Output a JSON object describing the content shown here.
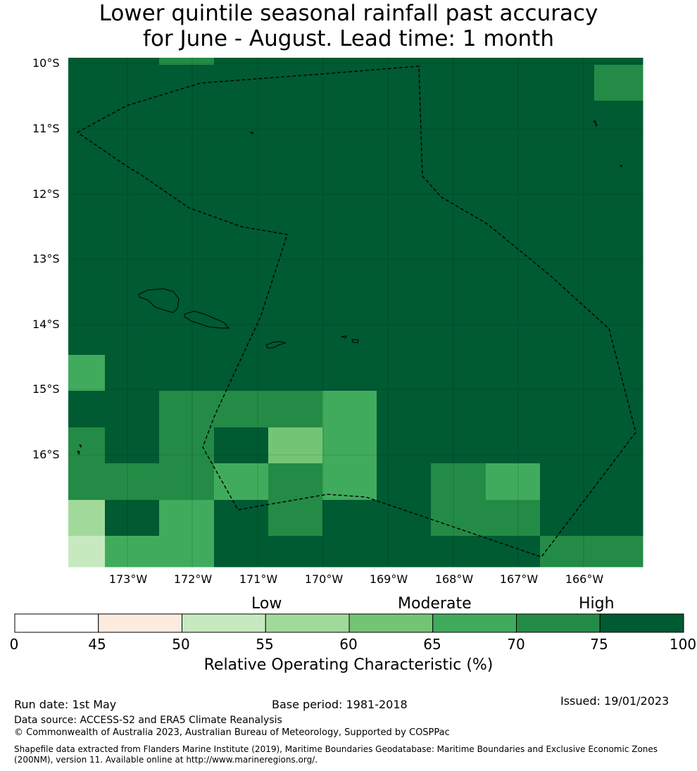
{
  "title": {
    "line1": "Lower quintile seasonal rainfall past accuracy",
    "line2": "for June - August. Lead time: 1 month"
  },
  "map": {
    "lat_labels": [
      "10°S",
      "11°S",
      "12°S",
      "13°S",
      "14°S",
      "15°S",
      "16°S"
    ],
    "lon_labels": [
      "173°W",
      "172°W",
      "171°W",
      "170°W",
      "169°W",
      "168°W",
      "167°W",
      "166°W"
    ],
    "grid_values": [
      [
        100,
        100,
        70,
        100,
        100,
        100,
        100,
        100,
        100,
        100,
        100,
        100,
        100,
        100,
        100,
        100
      ],
      [
        100,
        100,
        100,
        100,
        100,
        100,
        100,
        100,
        100,
        100,
        75,
        100,
        100,
        75,
        70,
        100
      ],
      [
        100,
        100,
        100,
        100,
        100,
        100,
        100,
        100,
        100,
        100,
        75,
        100,
        100,
        75,
        75,
        75
      ],
      [
        100,
        100,
        100,
        100,
        75,
        75,
        75,
        100,
        100,
        100,
        100,
        100,
        100,
        75,
        100,
        100
      ],
      [
        100,
        100,
        100,
        100,
        75,
        100,
        100,
        75,
        100,
        100,
        100,
        100,
        100,
        100,
        100,
        100
      ],
      [
        100,
        100,
        100,
        100,
        100,
        100,
        100,
        100,
        100,
        100,
        100,
        75,
        100,
        100,
        100,
        100
      ],
      [
        100,
        100,
        100,
        100,
        100,
        100,
        100,
        100,
        100,
        100,
        100,
        100,
        100,
        100,
        100,
        100
      ],
      [
        100,
        100,
        100,
        100,
        100,
        100,
        100,
        100,
        100,
        100,
        100,
        100,
        100,
        100,
        100,
        100
      ],
      [
        75,
        100,
        100,
        100,
        100,
        100,
        100,
        100,
        100,
        100,
        100,
        100,
        100,
        100,
        75,
        65
      ],
      [
        65,
        100,
        100,
        100,
        75,
        100,
        100,
        75,
        100,
        100,
        100,
        100,
        100,
        100,
        100,
        65
      ],
      [
        100,
        75,
        70,
        70,
        70,
        70,
        70,
        65,
        100,
        100,
        100,
        100,
        100,
        100,
        100,
        100
      ],
      [
        70,
        75,
        70,
        70,
        75,
        60,
        60,
        65,
        100,
        100,
        100,
        100,
        70,
        100,
        100,
        75
      ],
      [
        70,
        70,
        70,
        100,
        65,
        70,
        70,
        65,
        100,
        70,
        70,
        65,
        70,
        100,
        100,
        100
      ],
      [
        55,
        75,
        65,
        65,
        75,
        70,
        70,
        75,
        75,
        75,
        70,
        70,
        70,
        75,
        100,
        100
      ],
      [
        50,
        65,
        65,
        70,
        100,
        100,
        100,
        100,
        100,
        100,
        75,
        75,
        65,
        70,
        70,
        70
      ]
    ]
  },
  "legend": {
    "category_labels": [
      "Low",
      "Moderate",
      "High"
    ],
    "tick_labels": [
      "0",
      "45",
      "50",
      "55",
      "60",
      "65",
      "70",
      "75",
      "100"
    ],
    "colors": [
      "#ffffff",
      "#fdebe0",
      "#c7e9c0",
      "#a1d99b",
      "#74c476",
      "#41ab5d",
      "#238b45",
      "#005a32"
    ],
    "title": "Relative Operating Characteristic (%)"
  },
  "footer": {
    "run_date": "Run date: 1st May",
    "base_period": "Base period: 1981-2018",
    "issued": "Issued: 19/01/2023",
    "data_source": "Data source: ACCESS-S2 and ERA5 Climate Reanalysis",
    "copyright": "© Commonwealth of Australia 2023, Australian Bureau of Meteorology, Supported by COSPPac",
    "shapefile": "Shapefile data extracted from Flanders Marine Institute (2019), Maritime Boundaries Geodatabase: Maritime Boundaries and Exclusive Economic Zones (200NM), version 11. Available online at http://www.marineregions.org/."
  }
}
